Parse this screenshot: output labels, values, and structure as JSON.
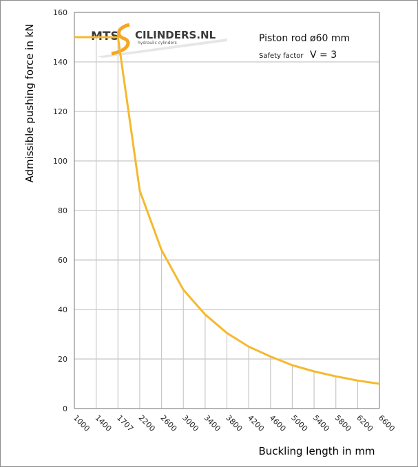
{
  "chart_data": {
    "type": "line",
    "title": "",
    "xlabel": "Buckling length in mm",
    "ylabel": "Admissible pushing force in kN",
    "x_categories": [
      "1000",
      "1400",
      "1707",
      "2200",
      "2600",
      "3000",
      "3400",
      "3800",
      "4200",
      "4600",
      "5000",
      "5400",
      "5800",
      "6200",
      "6600"
    ],
    "ylim": [
      0,
      160
    ],
    "yticks": [
      0,
      20,
      40,
      60,
      80,
      100,
      120,
      140,
      160
    ],
    "grid": true,
    "series": [
      {
        "color": "#f5b92e",
        "values": [
          150,
          150,
          150,
          88,
          64,
          48,
          38,
          30.5,
          25,
          21,
          17.5,
          15,
          13,
          11.3,
          10
        ]
      }
    ],
    "annotations": {
      "line1": "Piston rod ø60 mm",
      "line2_small": "Safety factor",
      "line2_big": "V = 3"
    }
  },
  "logo": {
    "text_left": "MTS",
    "text_right": "CILINDERS.NL",
    "subtitle": "hydraulic cylinders"
  },
  "colors": {
    "curve": "#f5b92e",
    "grid": "#c8c8c8",
    "axis": "#8c8c8c",
    "logo_accent": "#f5a623"
  }
}
